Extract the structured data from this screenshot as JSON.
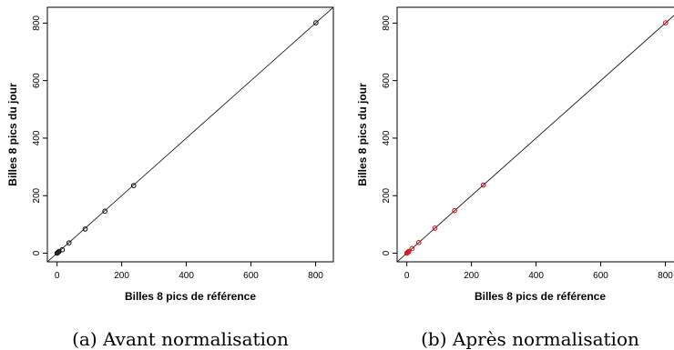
{
  "chart_data": [
    {
      "type": "scatter",
      "caption": "(a) Avant normalisation",
      "xlabel": "Billes 8 pics de référence",
      "ylabel": "Billes 8 pics du jour",
      "xlim": [
        -30,
        855
      ],
      "ylim": [
        -30,
        855
      ],
      "xticks": [
        0,
        200,
        400,
        600,
        800
      ],
      "yticks": [
        0,
        200,
        400,
        600,
        800
      ],
      "point_color": "#000000",
      "reference_line": "y = x",
      "x": [
        0,
        3,
        6,
        16,
        37,
        87,
        148,
        237,
        801
      ],
      "y": [
        0,
        3,
        6,
        12,
        36,
        84,
        146,
        235,
        801
      ]
    },
    {
      "type": "scatter",
      "caption": "(b) Après normalisation",
      "xlabel": "Billes 8 pics de référence",
      "ylabel": "Billes 8 pics du jour",
      "xlim": [
        -30,
        855
      ],
      "ylim": [
        -30,
        855
      ],
      "xticks": [
        0,
        200,
        400,
        600,
        800
      ],
      "yticks": [
        0,
        200,
        400,
        600,
        800
      ],
      "point_color": "#dd0000",
      "reference_line": "y = x",
      "x": [
        0,
        3,
        6,
        16,
        37,
        87,
        148,
        237,
        801
      ],
      "y": [
        0,
        3,
        6,
        16,
        37,
        87,
        148,
        237,
        801
      ]
    }
  ]
}
